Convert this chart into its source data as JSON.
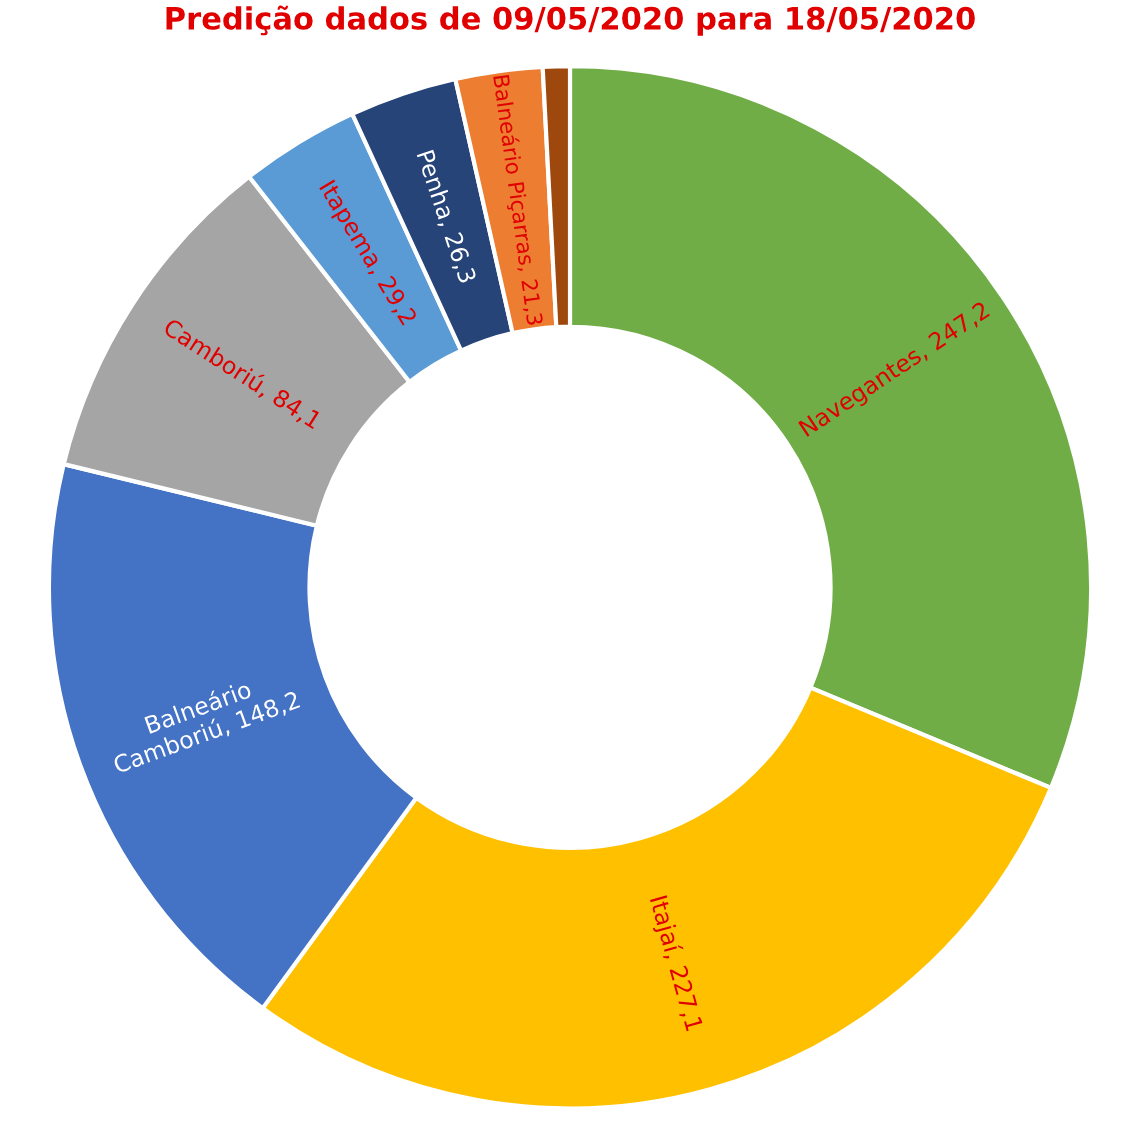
{
  "chart_data": {
    "type": "donut",
    "title": "Predição dados de 09/05/2020 para 18/05/2020",
    "categories": [
      "Navegantes",
      "Itajaí",
      "Balneário Camboriú",
      "Camboriú",
      "Itapema",
      "Penha",
      "Balneário Piçarras",
      null
    ],
    "values": [
      247.2,
      227.1,
      148.2,
      84.1,
      29.2,
      26.3,
      21.3,
      6.6
    ],
    "value_labels": [
      "247,2",
      "227,1",
      "148,2",
      "84,1",
      "29,2",
      "26,3",
      "21,3",
      null
    ],
    "colors": [
      "#70ad47",
      "#ffc000",
      "#4472c4",
      "#a5a5a5",
      "#5b9bd5",
      "#264478",
      "#ed7d31",
      "#9e480e"
    ]
  }
}
